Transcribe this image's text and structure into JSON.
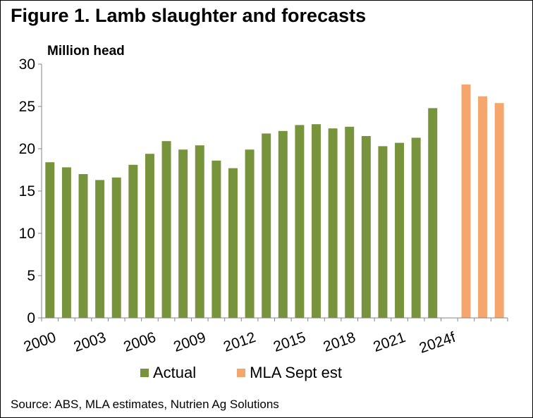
{
  "chart_data": {
    "type": "bar",
    "title": "Figure 1. Lamb slaughter and forecasts",
    "ylabel": "Million head",
    "xlabel": "",
    "ylim": [
      0,
      30
    ],
    "yticks": [
      0,
      5,
      10,
      15,
      20,
      25,
      30
    ],
    "grid": false,
    "legend_position": "bottom",
    "categories": [
      "2000",
      "2001",
      "2002",
      "2003",
      "2004",
      "2005",
      "2006",
      "2007",
      "2008",
      "2009",
      "2010",
      "2011",
      "2012",
      "2013",
      "2014",
      "2015",
      "2016",
      "2017",
      "2018",
      "2019",
      "2020",
      "2021",
      "2022",
      "2023",
      "2024f",
      "2025f",
      "2026f",
      "2027f"
    ],
    "x_tick_labels": [
      "2000",
      "2003",
      "2006",
      "2009",
      "2012",
      "2015",
      "2018",
      "2021",
      "2024f"
    ],
    "series": [
      {
        "name": "Actual",
        "color": "#77933C",
        "values": [
          18.4,
          17.8,
          17.0,
          16.3,
          16.6,
          18.1,
          19.4,
          20.9,
          19.9,
          20.4,
          18.6,
          17.7,
          19.9,
          21.8,
          22.1,
          22.8,
          22.9,
          22.4,
          22.6,
          21.5,
          20.3,
          20.7,
          21.3,
          24.8,
          null,
          null,
          null,
          null
        ]
      },
      {
        "name": "MLA Sept est",
        "color": "#F5A66D",
        "values": [
          null,
          null,
          null,
          null,
          null,
          null,
          null,
          null,
          null,
          null,
          null,
          null,
          null,
          null,
          null,
          null,
          null,
          null,
          null,
          null,
          null,
          null,
          null,
          null,
          null,
          27.6,
          26.2,
          25.4
        ]
      }
    ],
    "source": "Source: ABS, MLA estimates, Nutrien Ag Solutions"
  }
}
